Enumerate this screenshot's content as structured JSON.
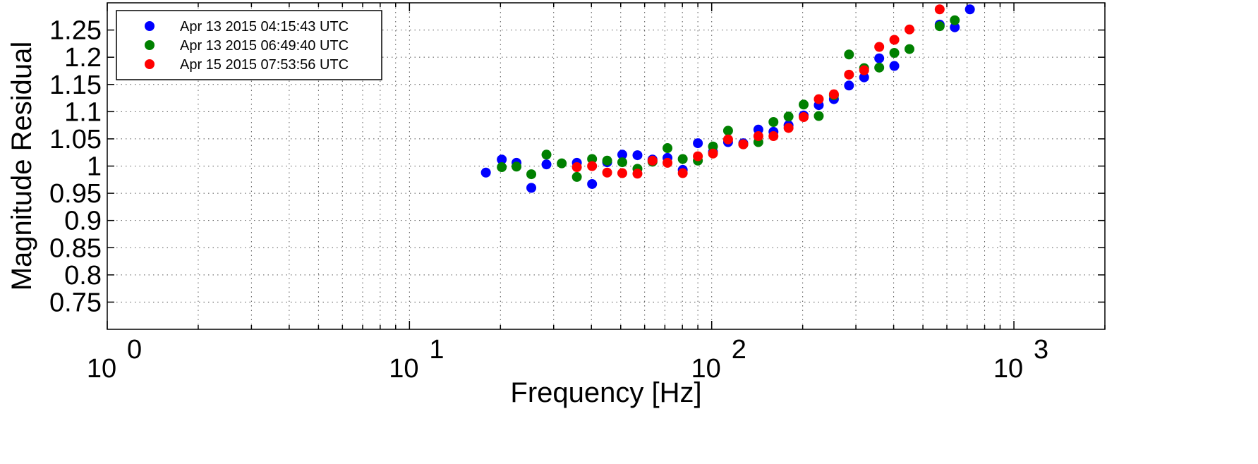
{
  "chart_data": {
    "type": "scatter",
    "xscale": "log",
    "xlim": [
      1,
      2000
    ],
    "ylim": [
      0.7,
      1.3
    ],
    "grid": true,
    "legend_position": "top-left",
    "xlabel": "Frequency [Hz]",
    "ylabel": "Magnitude Residual",
    "x_ticks": [
      {
        "value": 1,
        "base": "10",
        "exp": "0"
      },
      {
        "value": 10,
        "base": "10",
        "exp": "1"
      },
      {
        "value": 100,
        "base": "10",
        "exp": "2"
      },
      {
        "value": 1000,
        "base": "10",
        "exp": "3"
      }
    ],
    "y_ticks": [
      "0.75",
      "0.8",
      "0.85",
      "0.9",
      "0.95",
      "1",
      "1.05",
      "1.1",
      "1.15",
      "1.2",
      "1.25"
    ],
    "series": [
      {
        "name": "Apr 13 2015 04:15:43 UTC",
        "color": "#0000ff",
        "x": [
          17.9,
          20.2,
          22.6,
          25.3,
          28.4,
          35.8,
          40.2,
          45.1,
          50.6,
          56.8,
          63.7,
          71.4,
          80.2,
          90,
          101,
          113.3,
          127.2,
          142.7,
          160.1,
          179.6,
          201.5,
          226.1,
          253.7,
          284.7,
          319.4,
          358.4,
          402.1,
          451.2,
          568,
          637.3,
          715.1
        ],
        "y": [
          0.988,
          1.012,
          1.006,
          0.96,
          1.003,
          1.006,
          0.967,
          1.007,
          1.021,
          1.02,
          1.012,
          1.015,
          0.993,
          1.042,
          1.026,
          1.044,
          1.042,
          1.067,
          1.063,
          1.075,
          1.093,
          1.112,
          1.123,
          1.148,
          1.163,
          1.198,
          1.184,
          null,
          1.26,
          1.255,
          1.288
        ]
      },
      {
        "name": "Apr 13 2015 06:49:40 UTC",
        "color": "#008000",
        "x": [
          20.2,
          22.6,
          25.3,
          28.4,
          31.9,
          35.8,
          40.2,
          45.1,
          50.6,
          56.8,
          63.7,
          71.4,
          80.2,
          90,
          101,
          113.3,
          127.2,
          142.7,
          160.1,
          179.6,
          201.5,
          226.1,
          253.7,
          284.7,
          319.4,
          358.4,
          402.1,
          451.2,
          568,
          637.3,
          715.1
        ],
        "y": [
          0.998,
          0.999,
          0.985,
          1.021,
          1.005,
          0.98,
          1.013,
          1.01,
          1.007,
          0.995,
          1.008,
          1.033,
          1.013,
          1.01,
          1.036,
          1.065,
          1.04,
          1.044,
          1.081,
          1.091,
          1.113,
          1.092,
          1.13,
          1.205,
          1.18,
          1.181,
          1.208,
          1.215,
          1.257,
          1.268,
          null
        ]
      },
      {
        "name": "Apr 15 2015 07:53:56 UTC",
        "color": "#ff0000",
        "x": [
          35.8,
          40.2,
          45.1,
          50.6,
          56.8,
          63.7,
          71.4,
          80.2,
          90,
          101,
          113.3,
          127.2,
          142.7,
          160.1,
          179.6,
          201.5,
          226.1,
          253.7,
          284.7,
          319.4,
          358.4,
          402.1,
          451.2,
          568,
          637.3
        ],
        "y": [
          0.998,
          1.0,
          0.988,
          0.987,
          0.986,
          1.01,
          1.006,
          0.987,
          1.018,
          1.023,
          1.049,
          1.04,
          1.055,
          1.055,
          1.07,
          1.09,
          1.123,
          1.132,
          1.168,
          1.176,
          1.219,
          1.232,
          1.251,
          1.288,
          null
        ]
      }
    ]
  }
}
